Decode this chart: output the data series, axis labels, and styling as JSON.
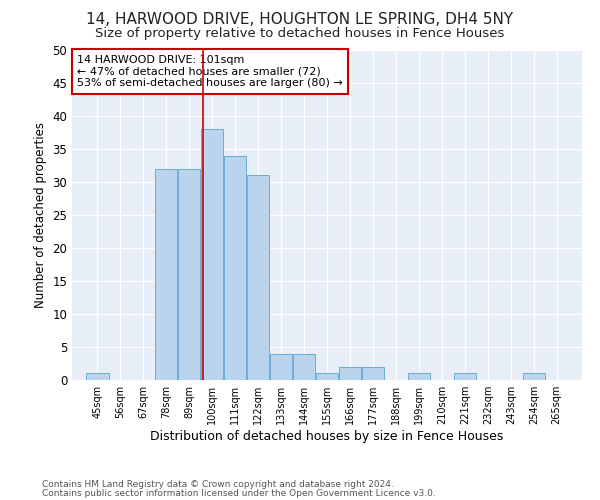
{
  "title": "14, HARWOOD DRIVE, HOUGHTON LE SPRING, DH4 5NY",
  "subtitle": "Size of property relative to detached houses in Fence Houses",
  "xlabel": "Distribution of detached houses by size in Fence Houses",
  "ylabel": "Number of detached properties",
  "bin_labels": [
    "45sqm",
    "56sqm",
    "67sqm",
    "78sqm",
    "89sqm",
    "100sqm",
    "111sqm",
    "122sqm",
    "133sqm",
    "144sqm",
    "155sqm",
    "166sqm",
    "177sqm",
    "188sqm",
    "199sqm",
    "210sqm",
    "221sqm",
    "232sqm",
    "243sqm",
    "254sqm",
    "265sqm"
  ],
  "bin_edges": [
    45,
    56,
    67,
    78,
    89,
    100,
    111,
    122,
    133,
    144,
    155,
    166,
    177,
    188,
    199,
    210,
    221,
    232,
    243,
    254,
    265
  ],
  "bar_heights": [
    1,
    0,
    0,
    32,
    32,
    38,
    34,
    31,
    4,
    4,
    1,
    2,
    2,
    0,
    1,
    0,
    1,
    0,
    0,
    1,
    0
  ],
  "bar_color": "#bad4ed",
  "bar_edge_color": "#6aacd6",
  "property_value": 101,
  "vline_color": "#cc0000",
  "annotation_text": "14 HARWOOD DRIVE: 101sqm\n← 47% of detached houses are smaller (72)\n53% of semi-detached houses are larger (80) →",
  "annotation_box_color": "#ffffff",
  "annotation_box_edge_color": "#cc0000",
  "ylim": [
    0,
    50
  ],
  "yticks": [
    0,
    5,
    10,
    15,
    20,
    25,
    30,
    35,
    40,
    45,
    50
  ],
  "bg_color": "#e8eef8",
  "footer_line1": "Contains HM Land Registry data © Crown copyright and database right 2024.",
  "footer_line2": "Contains public sector information licensed under the Open Government Licence v3.0.",
  "title_fontsize": 11,
  "subtitle_fontsize": 9.5
}
